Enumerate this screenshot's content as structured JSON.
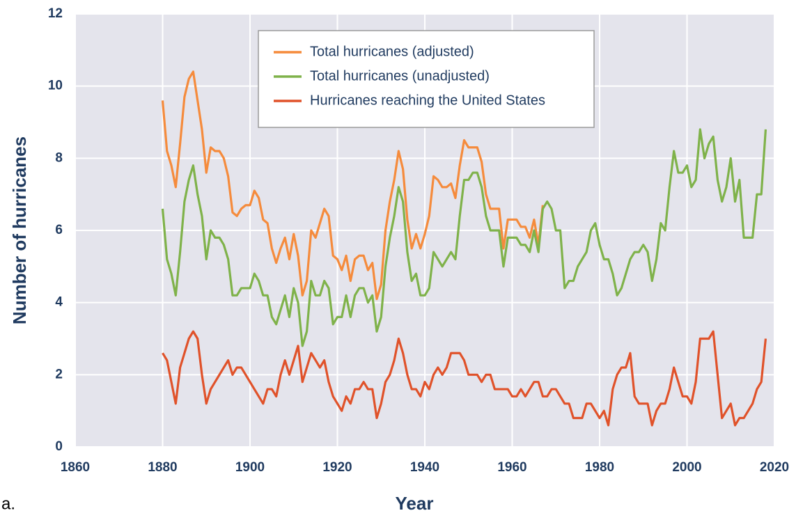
{
  "chart_data": {
    "type": "line",
    "panel_label": "a.",
    "x_label": "Year",
    "y_label": "Number of hurricanes",
    "xlim": [
      1860,
      2020
    ],
    "xticks": [
      1860,
      1880,
      1900,
      1920,
      1940,
      1960,
      1980,
      2000,
      2020
    ],
    "ylim": [
      0,
      12
    ],
    "yticks": [
      0,
      2,
      4,
      6,
      8,
      10,
      12
    ],
    "grid": true,
    "legend": "upper center",
    "x": [
      1880,
      1881,
      1882,
      1883,
      1884,
      1885,
      1886,
      1887,
      1888,
      1889,
      1890,
      1891,
      1892,
      1893,
      1894,
      1895,
      1896,
      1897,
      1898,
      1899,
      1900,
      1901,
      1902,
      1903,
      1904,
      1905,
      1906,
      1907,
      1908,
      1909,
      1910,
      1911,
      1912,
      1913,
      1914,
      1915,
      1916,
      1917,
      1918,
      1919,
      1920,
      1921,
      1922,
      1923,
      1924,
      1925,
      1926,
      1927,
      1928,
      1929,
      1930,
      1931,
      1932,
      1933,
      1934,
      1935,
      1936,
      1937,
      1938,
      1939,
      1940,
      1941,
      1942,
      1943,
      1944,
      1945,
      1946,
      1947,
      1948,
      1949,
      1950,
      1951,
      1952,
      1953,
      1954,
      1955,
      1956,
      1957,
      1958,
      1959,
      1960,
      1961,
      1962,
      1963,
      1964,
      1965,
      1966,
      1967,
      1968,
      1969,
      1970,
      1971,
      1972,
      1973,
      1974,
      1975,
      1976,
      1977,
      1978,
      1979,
      1980,
      1981,
      1982,
      1983,
      1984,
      1985,
      1986,
      1987,
      1988,
      1989,
      1990,
      1991,
      1992,
      1993,
      1994,
      1995,
      1996,
      1997,
      1998,
      1999,
      2000,
      2001,
      2002,
      2003,
      2004,
      2005,
      2006,
      2007,
      2008,
      2009,
      2010,
      2011,
      2012,
      2013,
      2014,
      2015,
      2016,
      2017,
      2018
    ],
    "series": [
      {
        "name": "Total hurricanes (adjusted)",
        "color": "#f58b3c",
        "values": [
          9.6,
          8.2,
          7.8,
          7.2,
          8.4,
          9.7,
          10.2,
          10.4,
          9.6,
          8.8,
          7.6,
          8.3,
          8.2,
          8.2,
          8.0,
          7.5,
          6.5,
          6.4,
          6.6,
          6.7,
          6.7,
          7.1,
          6.9,
          6.3,
          6.2,
          5.5,
          5.1,
          5.5,
          5.8,
          5.2,
          5.9,
          5.3,
          4.2,
          4.6,
          6.0,
          5.8,
          6.2,
          6.6,
          6.4,
          5.3,
          5.2,
          4.9,
          5.3,
          4.6,
          5.2,
          5.3,
          5.3,
          4.9,
          5.1,
          4.1,
          4.5,
          6.0,
          6.8,
          7.4,
          8.2,
          7.7,
          6.3,
          5.5,
          5.9,
          5.5,
          5.9,
          6.4,
          7.5,
          7.4,
          7.2,
          7.2,
          7.3,
          6.9,
          7.8,
          8.5,
          8.3,
          8.3,
          8.3,
          7.9,
          7.0,
          6.6,
          6.6,
          6.6,
          5.5,
          6.3,
          6.3,
          6.3,
          6.1,
          6.1,
          5.8,
          6.3,
          5.6,
          6.7,
          null,
          null,
          null,
          null,
          null,
          null,
          null,
          null,
          null,
          null,
          null,
          null,
          null,
          null,
          null,
          null,
          null,
          null,
          null,
          null,
          null,
          null,
          null,
          null,
          null,
          null,
          null,
          null,
          null,
          null,
          null,
          null,
          null,
          null,
          null,
          null,
          null,
          null,
          null,
          null,
          null,
          null,
          null,
          null,
          null,
          null,
          null,
          null,
          null,
          null,
          null
        ]
      },
      {
        "name": "Total hurricanes (unadjusted)",
        "color": "#7fb24a",
        "values": [
          6.6,
          5.2,
          4.8,
          4.2,
          5.4,
          6.8,
          7.4,
          7.8,
          7.0,
          6.4,
          5.2,
          6.0,
          5.8,
          5.8,
          5.6,
          5.2,
          4.2,
          4.2,
          4.4,
          4.4,
          4.4,
          4.8,
          4.6,
          4.2,
          4.2,
          3.6,
          3.4,
          3.8,
          4.2,
          3.6,
          4.4,
          4.0,
          2.8,
          3.2,
          4.6,
          4.2,
          4.2,
          4.6,
          4.4,
          3.4,
          3.6,
          3.6,
          4.2,
          3.6,
          4.2,
          4.4,
          4.4,
          4.0,
          4.2,
          3.2,
          3.6,
          5.0,
          5.8,
          6.4,
          7.2,
          6.8,
          5.4,
          4.6,
          4.8,
          4.2,
          4.2,
          4.4,
          5.4,
          5.2,
          5.0,
          5.2,
          5.4,
          5.2,
          6.4,
          7.4,
          7.4,
          7.6,
          7.6,
          7.2,
          6.4,
          6.0,
          6.0,
          6.0,
          5.0,
          5.8,
          5.8,
          5.8,
          5.6,
          5.6,
          5.4,
          6.0,
          5.4,
          6.6,
          6.8,
          6.6,
          6.0,
          6.0,
          4.4,
          4.6,
          4.6,
          5.0,
          5.2,
          5.4,
          6.0,
          6.2,
          5.6,
          5.2,
          5.2,
          4.8,
          4.2,
          4.4,
          4.8,
          5.2,
          5.4,
          5.4,
          5.6,
          5.4,
          4.6,
          5.2,
          6.2,
          6.0,
          7.2,
          8.2,
          7.6,
          7.6,
          7.8,
          7.2,
          7.4,
          8.8,
          8.0,
          8.4,
          8.6,
          7.4,
          6.8,
          7.2,
          8.0,
          6.8,
          7.4,
          5.8,
          5.8,
          5.8,
          7.0,
          7.0,
          8.8
        ]
      },
      {
        "name": "Hurricanes reaching the United States",
        "color": "#e0522a",
        "values": [
          2.6,
          2.4,
          1.8,
          1.2,
          2.2,
          2.6,
          3.0,
          3.2,
          3.0,
          2.0,
          1.2,
          1.6,
          1.8,
          2.0,
          2.2,
          2.4,
          2.0,
          2.2,
          2.2,
          2.0,
          1.8,
          1.6,
          1.4,
          1.2,
          1.6,
          1.6,
          1.4,
          2.0,
          2.4,
          2.0,
          2.4,
          2.8,
          1.8,
          2.2,
          2.6,
          2.4,
          2.2,
          2.4,
          1.8,
          1.4,
          1.2,
          1.0,
          1.4,
          1.2,
          1.6,
          1.6,
          1.8,
          1.6,
          1.6,
          0.8,
          1.2,
          1.8,
          2.0,
          2.4,
          3.0,
          2.6,
          2.0,
          1.6,
          1.6,
          1.4,
          1.8,
          1.6,
          2.0,
          2.2,
          2.0,
          2.2,
          2.6,
          2.6,
          2.6,
          2.4,
          2.0,
          2.0,
          2.0,
          1.8,
          2.0,
          2.0,
          1.6,
          1.6,
          1.6,
          1.6,
          1.4,
          1.4,
          1.6,
          1.4,
          1.6,
          1.8,
          1.8,
          1.4,
          1.4,
          1.6,
          1.6,
          1.4,
          1.2,
          1.2,
          0.8,
          0.8,
          0.8,
          1.2,
          1.2,
          1.0,
          0.8,
          1.0,
          0.6,
          1.6,
          2.0,
          2.2,
          2.2,
          2.6,
          1.4,
          1.2,
          1.2,
          1.2,
          0.6,
          1.0,
          1.2,
          1.2,
          1.6,
          2.2,
          1.8,
          1.4,
          1.4,
          1.2,
          1.8,
          3.0,
          3.0,
          3.0,
          3.2,
          2.0,
          0.8,
          1.0,
          1.2,
          0.6,
          0.8,
          0.8,
          1.0,
          1.2,
          1.6,
          1.8,
          3.0
        ]
      }
    ]
  }
}
